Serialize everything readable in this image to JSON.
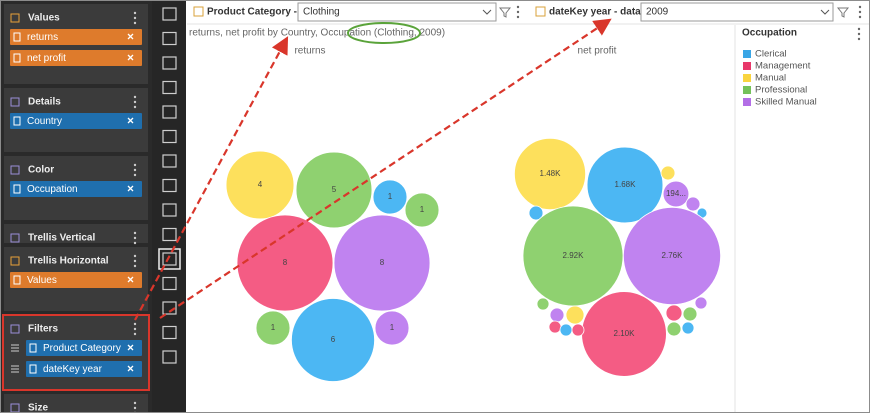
{
  "fields_panel": {
    "sections": [
      {
        "title": "Values",
        "chip_color": "#de7b2c",
        "items": [
          "returns",
          "net profit"
        ]
      },
      {
        "title": "Details",
        "chip_color": "#1f6fae",
        "items": [
          "Country"
        ]
      },
      {
        "title": "Color",
        "chip_color": "#1f6fae",
        "items": [
          "Occupation"
        ]
      },
      {
        "title": "Trellis Vertical",
        "chip_color": "#1f6fae",
        "items": []
      },
      {
        "title": "Trellis Horizontal",
        "chip_color": "#de7b2c",
        "items": [
          "Values"
        ]
      },
      {
        "title": "Filters",
        "chip_color": "#1f6fae",
        "items": [
          "Product Category",
          "dateKey year"
        ]
      },
      {
        "title": "Size",
        "chip_color": "#1f6fae",
        "items": []
      }
    ]
  },
  "filter_bar": {
    "filters": [
      {
        "name": "Product Category - ...",
        "selection": "Clothing"
      },
      {
        "name": "dateKey year - data",
        "selection": "2009"
      }
    ]
  },
  "chart_data": {
    "type": "bubble",
    "subtitle": "returns, net profit by Country, Occupation (Clothing, 2009)",
    "legend": {
      "title": "Occupation",
      "items": [
        {
          "name": "Clerical",
          "color": "#3aa6e6"
        },
        {
          "name": "Management",
          "color": "#e8386a"
        },
        {
          "name": "Manual",
          "color": "#f9d43f"
        },
        {
          "name": "Professional",
          "color": "#74c15a"
        },
        {
          "name": "Skilled Manual",
          "color": "#b36ee6"
        }
      ]
    },
    "panels": [
      {
        "title": "returns",
        "bubbles": [
          {
            "value": 4,
            "color": "#fde05c"
          },
          {
            "value": 5,
            "color": "#8fd170"
          },
          {
            "value": 1,
            "color": "#4cb7f3"
          },
          {
            "value": 1,
            "color": "#8fd170"
          },
          {
            "value": 8,
            "color": "#f45c84"
          },
          {
            "value": 8,
            "color": "#c083f0"
          },
          {
            "value": 1,
            "color": "#8fd170"
          },
          {
            "value": 6,
            "color": "#4cb7f3"
          },
          {
            "value": 1,
            "color": "#c083f0"
          }
        ]
      },
      {
        "title": "net profit",
        "bubbles": [
          {
            "value": 1480,
            "label": "1.48K",
            "color": "#fde05c"
          },
          {
            "value": 1680,
            "label": "1.68K",
            "color": "#4cb7f3"
          },
          {
            "value": 57,
            "color": "#fde05c"
          },
          {
            "value": 194,
            "label": "194...",
            "color": "#c083f0"
          },
          {
            "value": 57,
            "color": "#c083f0"
          },
          {
            "value": 29,
            "color": "#4cb7f3"
          },
          {
            "value": 57,
            "color": "#4cb7f3"
          },
          {
            "value": 2920,
            "label": "2.92K",
            "color": "#8fd170"
          },
          {
            "value": 2760,
            "label": "2.76K",
            "color": "#c083f0"
          },
          {
            "value": 2100,
            "label": "2.10K",
            "color": "#f45c84"
          },
          {
            "value": 42,
            "color": "#8fd170"
          },
          {
            "value": 57,
            "color": "#c083f0"
          },
          {
            "value": 95,
            "color": "#fde05c"
          },
          {
            "value": 42,
            "color": "#f45c84"
          },
          {
            "value": 42,
            "color": "#4cb7f3"
          },
          {
            "value": 42,
            "color": "#f45c84"
          },
          {
            "value": 75,
            "color": "#f45c84"
          },
          {
            "value": 57,
            "color": "#8fd170"
          },
          {
            "value": 42,
            "color": "#c083f0"
          },
          {
            "value": 42,
            "color": "#4cb7f3"
          },
          {
            "value": 57,
            "color": "#8fd170"
          }
        ]
      }
    ]
  }
}
